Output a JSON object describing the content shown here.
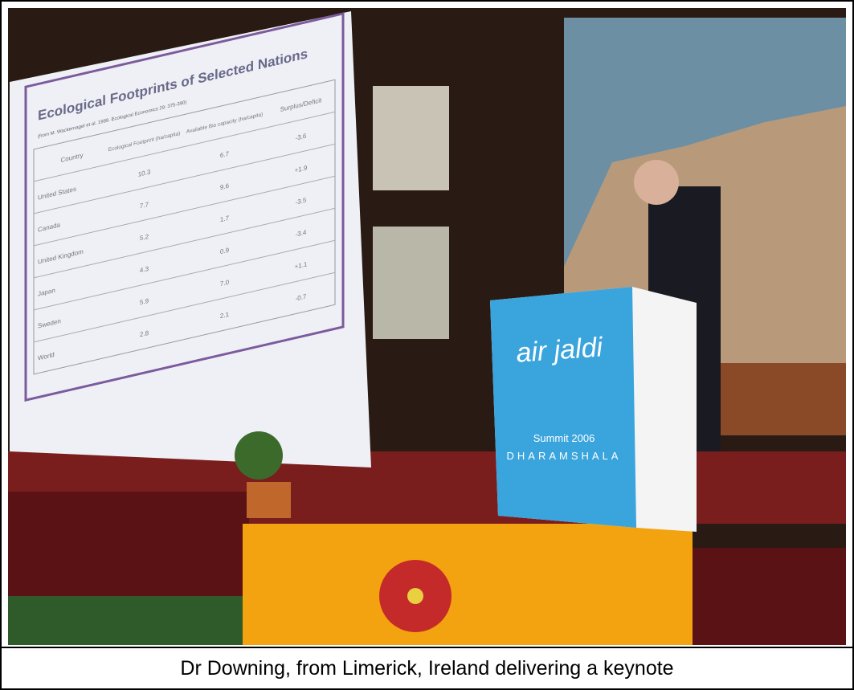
{
  "caption": "Dr Downing, from Limerick, Ireland delivering a keynote",
  "slide": {
    "title": "Ecological Footprints of Selected Nations",
    "source": "(from M. Wackernagel et al. 1999. Ecological Economics 29: 375-390)",
    "table": {
      "header": [
        "Country",
        "Ecological Footprint (ha/capita)",
        "Available Bio capacity (ha/capita)",
        "Surplus/Deficit"
      ],
      "rows": [
        [
          "United States",
          "10.3",
          "6.7",
          "-3.6"
        ],
        [
          "Canada",
          "7.7",
          "9.6",
          "+1.9"
        ],
        [
          "United Kingdom",
          "5.2",
          "1.7",
          "-3.5"
        ],
        [
          "Japan",
          "4.3",
          "0.9",
          "-3.4"
        ],
        [
          "Sweden",
          "5.9",
          "7.0",
          "+1.1"
        ],
        [
          "World",
          "2.8",
          "2.1",
          "-0.7"
        ]
      ]
    }
  },
  "podium": {
    "brand": "air jaldi",
    "event": "Summit 2006",
    "place": "DHARAMSHALA"
  }
}
